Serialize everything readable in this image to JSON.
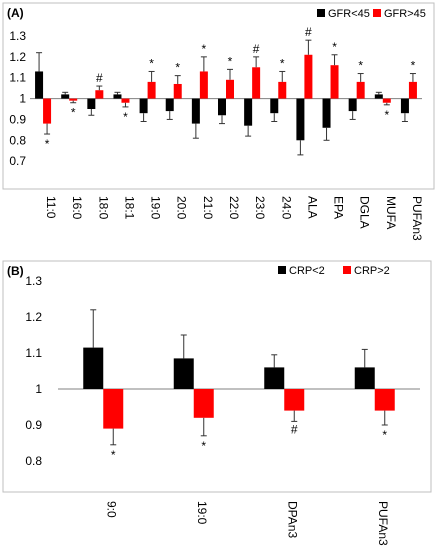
{
  "chart_data": [
    {
      "type": "bar",
      "panel_label": "(A)",
      "categories": [
        "11:0",
        "16:0",
        "18:0",
        "18:1",
        "19:0",
        "20:0",
        "21:0",
        "22:0",
        "23:0",
        "24:0",
        "ALA",
        "EPA",
        "DGLA",
        "MUFA",
        "PUFAn3"
      ],
      "series": [
        {
          "name": "GFR<45",
          "color": "#000000",
          "values": [
            1.13,
            1.02,
            0.95,
            1.02,
            0.93,
            0.94,
            0.88,
            0.92,
            0.87,
            0.93,
            0.8,
            0.86,
            0.94,
            1.02,
            0.93
          ],
          "errors": [
            0.09,
            0.01,
            0.03,
            0.01,
            0.04,
            0.04,
            0.07,
            0.04,
            0.05,
            0.04,
            0.07,
            0.06,
            0.04,
            0.01,
            0.04
          ]
        },
        {
          "name": "GFR>45",
          "color": "#ff0000",
          "values": [
            0.88,
            0.99,
            1.04,
            0.98,
            1.08,
            1.07,
            1.13,
            1.09,
            1.15,
            1.08,
            1.21,
            1.16,
            1.08,
            0.98,
            1.08
          ],
          "errors": [
            0.05,
            0.01,
            0.02,
            0.02,
            0.05,
            0.04,
            0.07,
            0.05,
            0.05,
            0.05,
            0.07,
            0.05,
            0.04,
            0.01,
            0.04
          ]
        }
      ],
      "markers": [
        "*",
        "*",
        "#",
        "*",
        "*",
        "*",
        "*",
        "*",
        "#",
        "*",
        "#",
        "*",
        "*",
        "*",
        "*"
      ],
      "ylim": [
        0.6,
        1.3
      ],
      "yticks": [
        "0.7",
        "0.8",
        "0.9",
        "1",
        "1.1",
        "1.2",
        "1.3"
      ],
      "baseline": 1,
      "legend_position": "top-right"
    },
    {
      "type": "bar",
      "panel_label": "(B)",
      "categories": [
        "9:0",
        "19:0",
        "DPAn3",
        "PUFAn3"
      ],
      "series": [
        {
          "name": "CRP<2",
          "color": "#000000",
          "values": [
            1.115,
            1.085,
            1.06,
            1.06
          ],
          "errors": [
            0.105,
            0.065,
            0.035,
            0.05
          ]
        },
        {
          "name": "CRP>2",
          "color": "#ff0000",
          "values": [
            0.89,
            0.92,
            0.94,
            0.94
          ],
          "errors": [
            0.045,
            0.05,
            0.03,
            0.04
          ]
        }
      ],
      "markers": [
        "*",
        "*",
        "#",
        "*"
      ],
      "ylim": [
        0.8,
        1.3
      ],
      "yticks": [
        "0.8",
        "0.9",
        "1",
        "1.1",
        "1.2",
        "1.3"
      ],
      "baseline": 1,
      "legend_position": "top-right"
    }
  ]
}
